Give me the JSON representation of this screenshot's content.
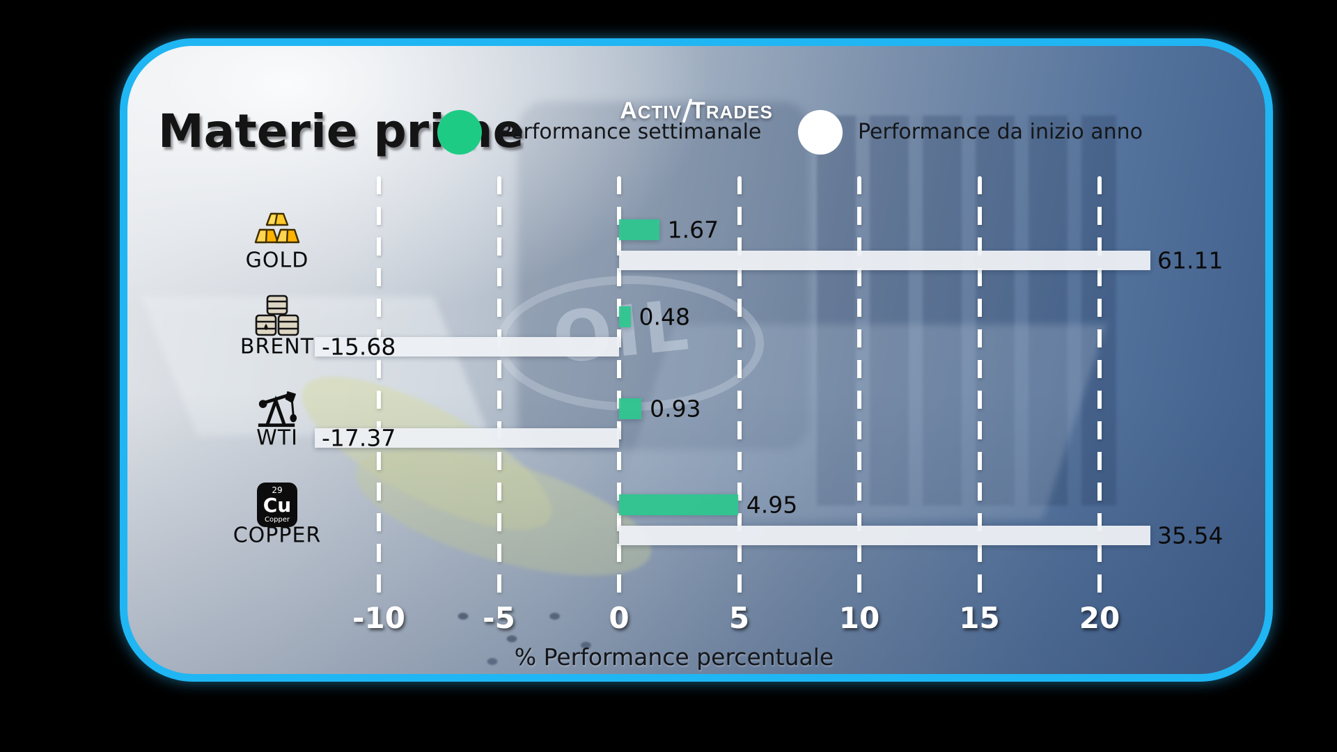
{
  "brand": {
    "name": "ActivTrades",
    "left_initial": "A",
    "left_rest": "CTIV",
    "right_initial": "T",
    "right_rest": "RADES"
  },
  "title": "Materie prime",
  "legend": [
    {
      "label": "Performance settimanale",
      "color": "#1ecb85"
    },
    {
      "label": "Performance da inizio anno",
      "color": "#ffffff"
    }
  ],
  "watermark": "OIL",
  "chart_data": {
    "type": "bar",
    "orientation": "horizontal",
    "title": "Materie prime",
    "categories": [
      "GOLD",
      "BRENT",
      "WTI",
      "COPPER"
    ],
    "icons": [
      "gold-bars",
      "oil-barrels",
      "oil-pump",
      "copper-element"
    ],
    "series": [
      {
        "name": "Performance settimanale",
        "color": "#2fc690",
        "values": [
          1.67,
          0.48,
          0.93,
          4.95
        ]
      },
      {
        "name": "Performance da inizio anno",
        "color": "#eef1f5",
        "values": [
          61.11,
          -15.68,
          -17.37,
          35.54
        ]
      }
    ],
    "xlabel": "% Performance percentuale",
    "xticks": [
      -10,
      -5,
      0,
      5,
      10,
      15,
      20
    ],
    "xlim": [
      -12.7,
      22.2
    ],
    "grid": "vertical-dashed-white",
    "legend_position": "top",
    "bars_clipped_at_xlim": true
  },
  "copper_icon": {
    "number": "29",
    "symbol": "Cu",
    "name": "Copper"
  },
  "colors": {
    "card_border": "#1fb6f3",
    "outside_background": "#000000",
    "weekly_bar": "#2fc690",
    "ytd_bar": "#eef1f5",
    "tick_text": "#ffffff",
    "value_text": "#0b0b0b"
  }
}
